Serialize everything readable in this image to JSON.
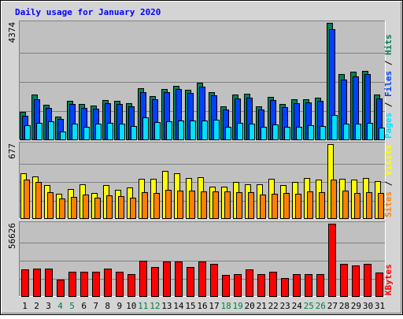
{
  "title": "Daily usage for January 2020",
  "chart_data": {
    "type": "bar",
    "title": "Daily usage for January 2020",
    "categories": [
      "1",
      "2",
      "3",
      "4",
      "5",
      "6",
      "7",
      "8",
      "9",
      "10",
      "11",
      "12",
      "13",
      "14",
      "15",
      "16",
      "17",
      "18",
      "19",
      "20",
      "21",
      "22",
      "23",
      "24",
      "25",
      "26",
      "27",
      "28",
      "29",
      "30",
      "31"
    ],
    "weekend_days": [
      "4",
      "5",
      "11",
      "12",
      "18",
      "19",
      "25",
      "26"
    ],
    "colors": {
      "hits": "#00805c",
      "files": "#0040ff",
      "pages": "#00e0ff",
      "visits": "#ffff00",
      "sites": "#ff8000",
      "kbytes": "#ff0000",
      "title": "#0000ff",
      "weekend_label": "#008040",
      "plot_bg": "#c0c0c0",
      "frame_bg": "#d4d4d4"
    },
    "panels": [
      {
        "id": "hits_files_pages",
        "ymax_label": "4374",
        "ymax": 4374,
        "grid": true,
        "legend": [
          {
            "text": "Pages",
            "color": "#00e0ff"
          },
          {
            "text": " / ",
            "color": "#000000"
          },
          {
            "text": "Files",
            "color": "#0040ff"
          },
          {
            "text": " / ",
            "color": "#000000"
          },
          {
            "text": "Hits",
            "color": "#00805c"
          }
        ],
        "series": [
          {
            "name": "Hits",
            "color": "#00805c",
            "values": [
              1020,
              1690,
              1290,
              860,
              1440,
              1320,
              1260,
              1490,
              1450,
              1360,
              1930,
              1640,
              1880,
              2010,
              1870,
              2140,
              1770,
              1230,
              1690,
              1700,
              1250,
              1600,
              1340,
              1500,
              1520,
              1570,
              4374,
              2450,
              2550,
              2580,
              1690
            ]
          },
          {
            "name": "Files",
            "color": "#0040ff",
            "values": [
              900,
              1520,
              1180,
              760,
              1320,
              1190,
              1150,
              1360,
              1330,
              1230,
              1770,
              1510,
              1760,
              1890,
              1750,
              1990,
              1660,
              1130,
              1550,
              1560,
              1120,
              1470,
              1210,
              1370,
              1400,
              1440,
              4130,
              2240,
              2350,
              2460,
              1530
            ]
          },
          {
            "name": "Pages",
            "color": "#00e0ff",
            "values": [
              540,
              630,
              670,
              300,
              580,
              470,
              580,
              610,
              580,
              500,
              820,
              640,
              680,
              720,
              720,
              720,
              740,
              470,
              630,
              590,
              470,
              550,
              480,
              470,
              520,
              510,
              920,
              590,
              580,
              610,
              450
            ]
          }
        ]
      },
      {
        "id": "visits_sites",
        "ymax_label": "677",
        "ymax": 677,
        "grid": true,
        "legend": [
          {
            "text": "Sites",
            "color": "#ff8000"
          },
          {
            "text": " / ",
            "color": "#000000"
          },
          {
            "text": "Visits",
            "color": "#ffff00"
          }
        ],
        "series": [
          {
            "name": "Visits",
            "color": "#ffff00",
            "values": [
              410,
              385,
              305,
              220,
              270,
              310,
              230,
              300,
              260,
              280,
              360,
              360,
              430,
              410,
              365,
              375,
              285,
              290,
              330,
              310,
              310,
              360,
              300,
              330,
              370,
              355,
              677,
              360,
              355,
              370,
              340
            ]
          },
          {
            "name": "Sites",
            "color": "#ff8000",
            "values": [
              350,
              330,
              235,
              180,
              195,
              215,
              190,
              210,
              200,
              190,
              240,
              230,
              260,
              255,
              255,
              245,
              245,
              245,
              235,
              235,
              215,
              225,
              230,
              225,
              245,
              240,
              350,
              255,
              230,
              235,
              230
            ]
          }
        ]
      },
      {
        "id": "kbytes",
        "ymax_label": "56626",
        "ymax": 56626,
        "grid": true,
        "legend": [
          {
            "text": "KBytes",
            "color": "#ff0000"
          }
        ],
        "series": [
          {
            "name": "KBytes",
            "color": "#ff0000",
            "values": [
              21000,
              21500,
              21500,
              13000,
              19000,
              19000,
              19000,
              21500,
              19000,
              17000,
              28000,
              22800,
              27000,
              27000,
              22800,
              27000,
              25000,
              16800,
              17500,
              21000,
              17000,
              19000,
              14000,
              17000,
              17000,
              17000,
              56626,
              25000,
              24000,
              25500,
              18500
            ]
          }
        ]
      }
    ]
  }
}
